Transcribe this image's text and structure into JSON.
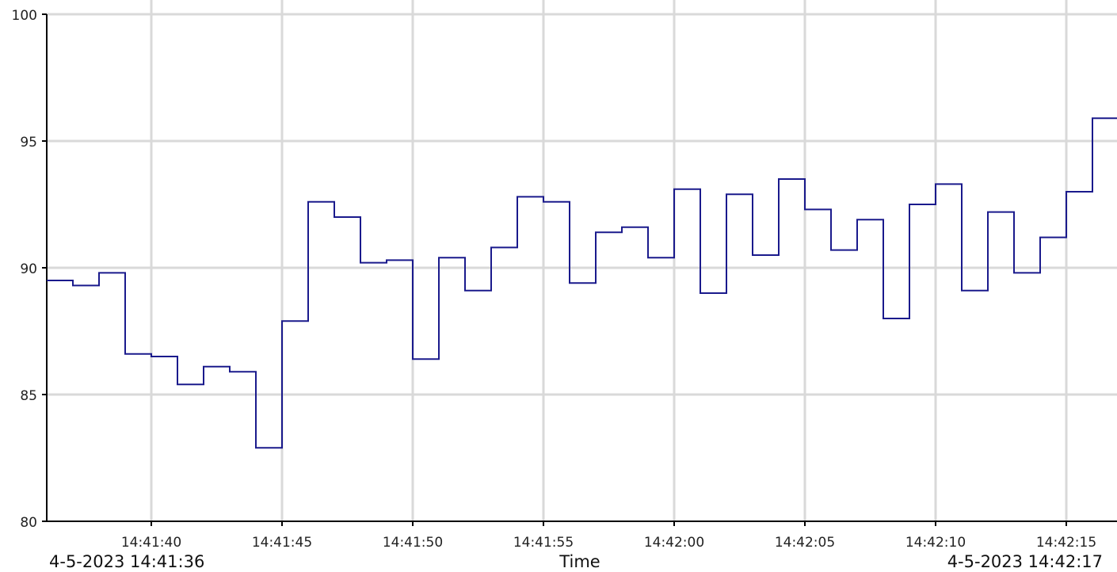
{
  "colors": {
    "line": "#1a1a8c",
    "grid": "#d9d9d9",
    "axis": "#000000",
    "text": "#222222",
    "background": "#ffffff"
  },
  "chart_data": {
    "type": "line",
    "step": true,
    "xlabel": "Time",
    "ylabel": "",
    "x_start_label": "4-5-2023 14:41:36",
    "x_end_label": "4-5-2023 14:42:17",
    "xlim": [
      "14:41:36",
      "14:42:17"
    ],
    "ylim": [
      80,
      100
    ],
    "x_ticks": [
      "14:41:40",
      "14:41:45",
      "14:41:50",
      "14:41:55",
      "14:42:00",
      "14:42:05",
      "14:42:10",
      "14:42:15"
    ],
    "y_ticks": [
      80,
      85,
      90,
      95,
      100
    ],
    "grid": {
      "vertical": true,
      "horizontal": true
    },
    "series": [
      {
        "x": [
          "14:41:36",
          "14:41:37",
          "14:41:38",
          "14:41:39",
          "14:41:40",
          "14:41:41",
          "14:41:42",
          "14:41:43",
          "14:41:44",
          "14:41:45",
          "14:41:46",
          "14:41:47",
          "14:41:48",
          "14:41:49",
          "14:41:50",
          "14:41:51",
          "14:41:52",
          "14:41:53",
          "14:41:54",
          "14:41:55",
          "14:41:56",
          "14:41:57",
          "14:41:58",
          "14:41:59",
          "14:42:00",
          "14:42:01",
          "14:42:02",
          "14:42:03",
          "14:42:04",
          "14:42:05",
          "14:42:06",
          "14:42:07",
          "14:42:08",
          "14:42:09",
          "14:42:10",
          "14:42:11",
          "14:42:12",
          "14:42:13",
          "14:42:14",
          "14:42:15",
          "14:42:16",
          "14:42:17"
        ],
        "values": [
          89.5,
          89.3,
          89.8,
          86.6,
          86.5,
          85.4,
          86.1,
          85.9,
          82.9,
          87.9,
          92.6,
          92.0,
          90.2,
          90.3,
          86.4,
          90.4,
          89.1,
          90.8,
          92.8,
          92.6,
          89.4,
          91.4,
          91.6,
          90.4,
          93.1,
          89.0,
          92.9,
          90.5,
          93.5,
          92.3,
          90.7,
          91.9,
          88.0,
          92.5,
          93.3,
          89.1,
          92.2,
          89.8,
          91.2,
          93.0,
          95.9,
          95.9
        ]
      }
    ]
  }
}
